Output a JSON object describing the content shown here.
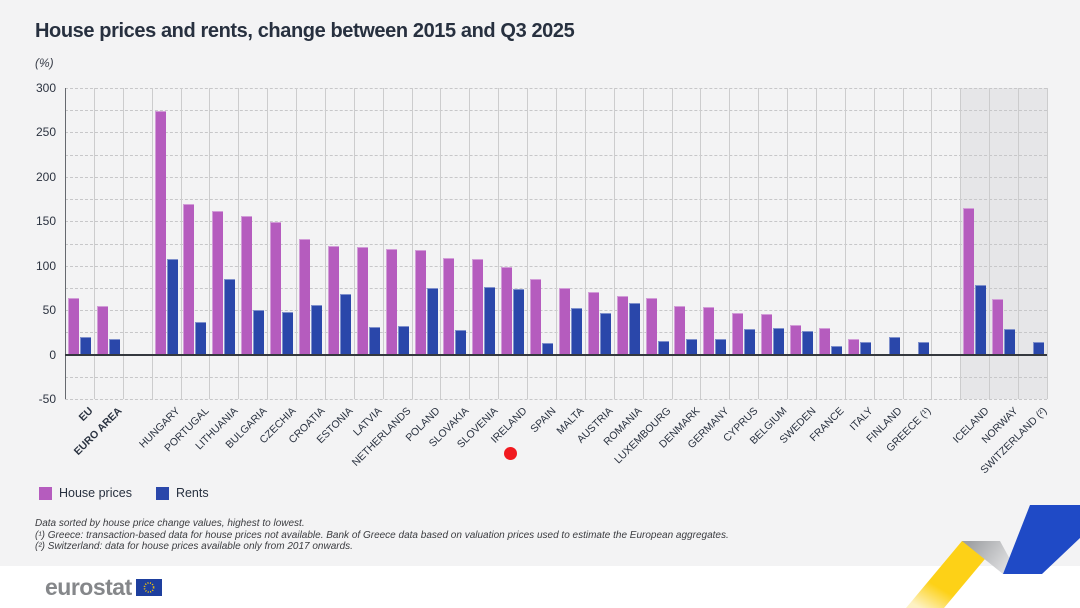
{
  "header": {
    "title": "House prices and rents, change between 2015 and Q3 2025",
    "subtitle": "(%)"
  },
  "legend": [
    {
      "label": "House prices",
      "color": "#b55cbe"
    },
    {
      "label": "Rents",
      "color": "#2a47aa"
    }
  ],
  "footnotes": [
    "Data sorted by house price change values, highest to lowest.",
    "(¹) Greece: transaction-based data for house prices not available. Bank of Greece data based on valuation prices used to estimate the European aggregates.",
    "(²) Switzerland: data for house prices available only from 2017 onwards."
  ],
  "footer": {
    "logo_text": "eurostat"
  },
  "colors": {
    "house_prices": "#b55cbe",
    "rents": "#2a47aa",
    "highlight_dot": "#f1191f",
    "shaded_band": "#e6e6e8",
    "ribbon_yellow": "#fdd117",
    "ribbon_blue": "#1f4ac6",
    "eu_flag_blue": "#1e3f9e"
  },
  "chart_data": {
    "type": "bar",
    "title": "House prices and rents, change between 2015 and Q3 2025",
    "xlabel": "",
    "ylabel": "(%)",
    "ylim": [
      -50,
      300
    ],
    "ytick_step": 50,
    "grid_step": 25,
    "grid": true,
    "legend_position": "bottom-left",
    "categories": [
      "EU",
      "EURO AREA",
      "HUNGARY",
      "PORTUGAL",
      "LITHUANIA",
      "BULGARIA",
      "CZECHIA",
      "CROATIA",
      "ESTONIA",
      "LATVIA",
      "NETHERLANDS",
      "POLAND",
      "SLOVAKIA",
      "SLOVENIA",
      "IRELAND",
      "SPAIN",
      "MALTA",
      "AUSTRIA",
      "ROMANIA",
      "LUXEMBOURG",
      "DENMARK",
      "GERMANY",
      "CYPRUS",
      "BELGIUM",
      "SWEDEN",
      "FRANCE",
      "ITALY",
      "FINLAND",
      "GREECE (¹)",
      "ICELAND",
      "NORWAY",
      "SWITZERLAND (²)"
    ],
    "series": [
      {
        "name": "House prices",
        "values": [
          64,
          55,
          274,
          169,
          162,
          156,
          149,
          130,
          122,
          121,
          119,
          118,
          109,
          107,
          99,
          85,
          75,
          70,
          66,
          64,
          55,
          54,
          47,
          46,
          33,
          30,
          17,
          -2,
          null,
          165,
          62,
          null
        ]
      },
      {
        "name": "Rents",
        "values": [
          20,
          18,
          107,
          37,
          85,
          50,
          48,
          56,
          68,
          31,
          32,
          75,
          28,
          76,
          74,
          13,
          52,
          47,
          58,
          15,
          18,
          18,
          29,
          30,
          27,
          10,
          14,
          20,
          14,
          78,
          29,
          14
        ]
      }
    ],
    "layout": {
      "gap_after": [
        "EURO AREA",
        "GREECE (¹)"
      ],
      "bold_categories": [
        "EU",
        "EURO AREA"
      ],
      "shaded_categories": [
        "ICELAND",
        "NORWAY",
        "SWITZERLAND (²)"
      ]
    },
    "highlight_dot": {
      "category": "SPAIN",
      "offset_x": -31,
      "y": 453,
      "radius": 6.5
    }
  }
}
